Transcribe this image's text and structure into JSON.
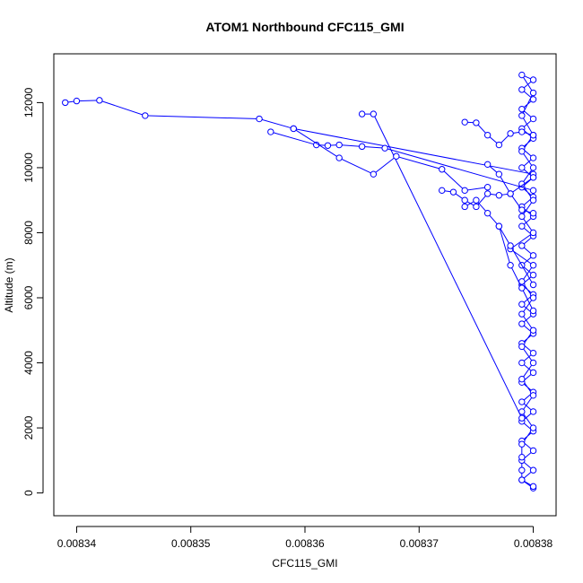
{
  "chart_data": {
    "type": "scatter",
    "title": "ATOM1 Northbound CFC115_GMI",
    "xlabel": "CFC115_GMI",
    "ylabel": "Altitude (m)",
    "xlim": [
      0.008338,
      0.008382
    ],
    "ylim": [
      -700,
      13500
    ],
    "x_ticks": [
      {
        "value": 0.00834,
        "label": "0.00834"
      },
      {
        "value": 0.00835,
        "label": "0.00835"
      },
      {
        "value": 0.00836,
        "label": "0.00836"
      },
      {
        "value": 0.00837,
        "label": "0.00837"
      },
      {
        "value": 0.00838,
        "label": "0.00838"
      }
    ],
    "y_ticks": [
      {
        "value": 0,
        "label": "0"
      },
      {
        "value": 2000,
        "label": "2000"
      },
      {
        "value": 4000,
        "label": "4000"
      },
      {
        "value": 6000,
        "label": "6000"
      },
      {
        "value": 8000,
        "label": "8000"
      },
      {
        "value": 10000,
        "label": "10000"
      },
      {
        "value": 12000,
        "label": "12000"
      }
    ],
    "grid": false,
    "marker": "open-circle",
    "connected": true,
    "series_color": "#0000ff",
    "series": [
      {
        "x": [
          0.00838,
          0.008379,
          0.00838,
          0.008379,
          0.00838,
          0.008379,
          0.00838,
          0.008379,
          0.00838,
          0.008379,
          0.00838,
          0.008379,
          0.00838,
          0.008379,
          0.00838,
          0.008379,
          0.00838,
          0.008379,
          0.00838,
          0.008379,
          0.00838,
          0.008379,
          0.00838,
          0.008379,
          0.00838,
          0.008379,
          0.00838,
          0.008379,
          0.00838,
          0.008379,
          0.00838,
          0.008379,
          0.00838,
          0.008379,
          0.00838,
          0.008379,
          0.00838,
          0.008379,
          0.00838,
          0.008379,
          0.00838,
          0.008379,
          0.00838,
          0.008379,
          0.00838,
          0.008379,
          0.00838,
          0.008379,
          0.00838,
          0.008379,
          0.00838,
          0.008379,
          0.00838,
          0.008378,
          0.00838,
          0.008379,
          0.00838,
          0.008379,
          0.00838,
          0.008379,
          0.00838,
          0.008379,
          0.00838,
          0.008379,
          0.00838,
          0.008379,
          0.008379,
          0.008379,
          0.008379,
          0.00838
        ],
        "y": [
          150,
          400,
          700,
          1000,
          1300,
          1600,
          1900,
          2200,
          2500,
          2800,
          3100,
          3400,
          3700,
          4000,
          4300,
          4600,
          4900,
          5200,
          5500,
          5800,
          6100,
          6400,
          6700,
          7000,
          7300,
          7600,
          7900,
          8200,
          8500,
          8800,
          9100,
          9400,
          9700,
          10000,
          10300,
          10600,
          10900,
          11200,
          11500,
          11800,
          12100,
          12400,
          12700,
          12850,
          12300,
          11600,
          11000,
          10500,
          10000,
          9500,
          9000,
          8500,
          8000,
          7500,
          7000,
          6500,
          6000,
          5500,
          5000,
          4500,
          4000,
          3500,
          3000,
          2500,
          2000,
          1500,
          1100,
          700,
          400,
          200
        ]
      },
      {
        "x": [
          0.008339,
          0.00834,
          0.008342,
          0.008346,
          0.008356,
          0.008359,
          0.00838
        ],
        "y": [
          12000,
          12050,
          12070,
          11600,
          11500,
          11200,
          9800
        ]
      },
      {
        "x": [
          0.008357,
          0.008361,
          0.008362,
          0.008363,
          0.008365,
          0.008367,
          0.00838
        ],
        "y": [
          11100,
          10700,
          10680,
          10700,
          10650,
          10600,
          9300
        ]
      },
      {
        "x": [
          0.008365,
          0.008366,
          0.008379
        ],
        "y": [
          11650,
          11650,
          2300
        ]
      },
      {
        "x": [
          0.008374,
          0.008375,
          0.008376,
          0.008377,
          0.008378,
          0.008379,
          0.00838
        ],
        "y": [
          11400,
          11380,
          11000,
          10700,
          11050,
          11100,
          11000
        ]
      },
      {
        "x": [
          0.008359,
          0.008363,
          0.008366,
          0.008368,
          0.008372,
          0.008374,
          0.008376
        ],
        "y": [
          11200,
          10300,
          9800,
          10350,
          9950,
          9300,
          9400
        ]
      },
      {
        "x": [
          0.008372,
          0.008373,
          0.008374,
          0.008375,
          0.008376,
          0.008377,
          0.008378,
          0.00838
        ],
        "y": [
          9300,
          9250,
          9000,
          8800,
          9200,
          9150,
          9200,
          9700
        ]
      },
      {
        "x": [
          0.008376,
          0.008377,
          0.008378,
          0.008379,
          0.00838
        ],
        "y": [
          10100,
          9800,
          9200,
          8700,
          8600
        ]
      },
      {
        "x": [
          0.008377,
          0.008378,
          0.008379,
          0.00838
        ],
        "y": [
          8200,
          7000,
          6300,
          5600
        ]
      },
      {
        "x": [
          0.008374,
          0.008375,
          0.008376,
          0.008377,
          0.008378,
          0.00838
        ],
        "y": [
          8800,
          9000,
          8600,
          8200,
          7600,
          6400
        ]
      }
    ]
  }
}
